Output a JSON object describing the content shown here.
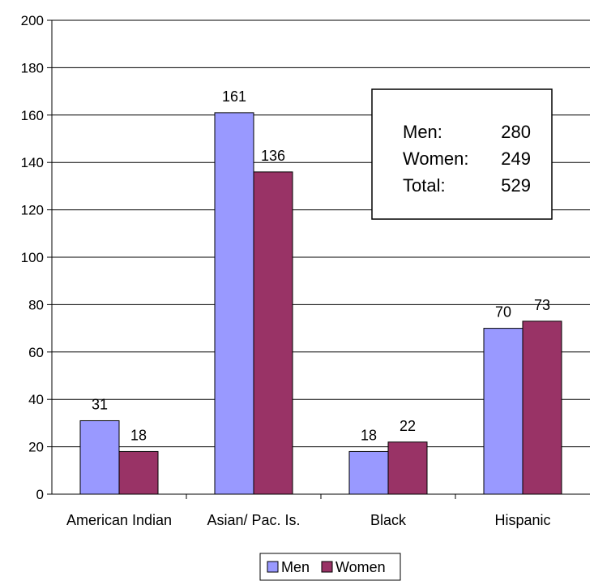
{
  "chart_data": {
    "type": "bar",
    "categories": [
      "American Indian",
      "Asian/ Pac. Is.",
      "Black",
      "Hispanic"
    ],
    "series": [
      {
        "name": "Men",
        "values": [
          31,
          161,
          18,
          70
        ],
        "color": "#9999ff"
      },
      {
        "name": "Women",
        "values": [
          18,
          136,
          22,
          73
        ],
        "color": "#993366"
      }
    ],
    "ylim": [
      0,
      200
    ],
    "yticks": [
      0,
      20,
      40,
      60,
      80,
      100,
      120,
      140,
      160,
      180,
      200
    ],
    "grid": true,
    "legend": "bottom",
    "title": "",
    "xlabel": "",
    "ylabel": "",
    "summary_box": {
      "rows": [
        {
          "label": "Men:",
          "value": "280"
        },
        {
          "label": "Women:",
          "value": "249"
        },
        {
          "label": "Total:",
          "value": "529"
        }
      ]
    }
  }
}
